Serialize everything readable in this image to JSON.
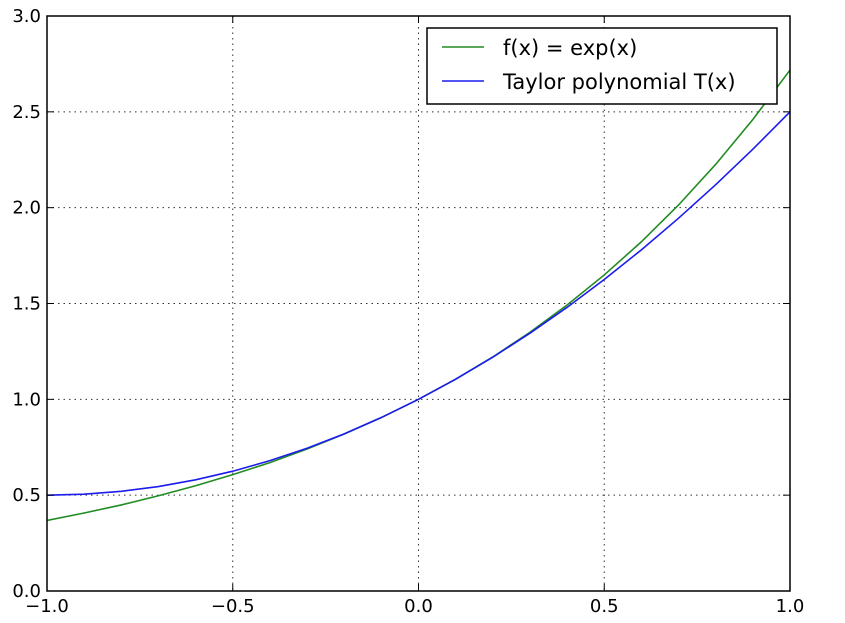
{
  "chart_data": {
    "type": "line",
    "title": "",
    "xlabel": "",
    "ylabel": "",
    "xlim": [
      -1.0,
      1.0
    ],
    "ylim": [
      0.0,
      3.0
    ],
    "grid": true,
    "legend_position": "top-right",
    "xticks": [
      "−1.0",
      "−0.5",
      "0.0",
      "0.5",
      "1.0"
    ],
    "xtick_values": [
      -1.0,
      -0.5,
      0.0,
      0.5,
      1.0
    ],
    "yticks": [
      "0.0",
      "0.5",
      "1.0",
      "1.5",
      "2.0",
      "2.5",
      "3.0"
    ],
    "ytick_values": [
      0.0,
      0.5,
      1.0,
      1.5,
      2.0,
      2.5,
      3.0
    ],
    "series": [
      {
        "name": "f(x) = exp(x)",
        "color": "#228b22",
        "x": [
          -1.0,
          -0.9,
          -0.8,
          -0.7,
          -0.6,
          -0.5,
          -0.4,
          -0.3,
          -0.2,
          -0.1,
          0.0,
          0.1,
          0.2,
          0.3,
          0.4,
          0.5,
          0.6,
          0.7,
          0.8,
          0.9,
          1.0
        ],
        "y": [
          0.368,
          0.407,
          0.449,
          0.497,
          0.549,
          0.607,
          0.67,
          0.741,
          0.819,
          0.905,
          1.0,
          1.105,
          1.221,
          1.35,
          1.492,
          1.649,
          1.822,
          2.014,
          2.226,
          2.46,
          2.718
        ]
      },
      {
        "name": "Taylor polynomial T(x)",
        "color": "#1c1cee",
        "x": [
          -1.0,
          -0.9,
          -0.8,
          -0.7,
          -0.6,
          -0.5,
          -0.4,
          -0.3,
          -0.2,
          -0.1,
          0.0,
          0.1,
          0.2,
          0.3,
          0.4,
          0.5,
          0.6,
          0.7,
          0.8,
          0.9,
          1.0
        ],
        "y": [
          0.5,
          0.505,
          0.52,
          0.545,
          0.58,
          0.625,
          0.68,
          0.745,
          0.82,
          0.905,
          1.0,
          1.105,
          1.22,
          1.345,
          1.48,
          1.625,
          1.78,
          1.945,
          2.12,
          2.305,
          2.5
        ]
      }
    ]
  }
}
